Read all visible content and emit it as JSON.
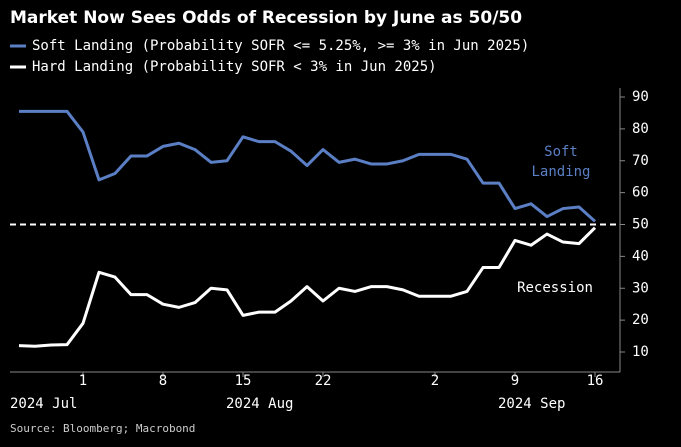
{
  "chart_data": {
    "type": "line",
    "title": "Market Now Sees Odds of Recession by June as 50/50",
    "x": [
      "2024-07-26",
      "2024-07-29",
      "2024-07-30",
      "2024-07-31",
      "2024-08-01",
      "2024-08-02",
      "2024-08-05",
      "2024-08-06",
      "2024-08-07",
      "2024-08-08",
      "2024-08-09",
      "2024-08-12",
      "2024-08-13",
      "2024-08-14",
      "2024-08-15",
      "2024-08-16",
      "2024-08-19",
      "2024-08-20",
      "2024-08-21",
      "2024-08-22",
      "2024-08-23",
      "2024-08-26",
      "2024-08-27",
      "2024-08-28",
      "2024-08-29",
      "2024-08-30",
      "2024-09-03",
      "2024-09-04",
      "2024-09-05",
      "2024-09-06",
      "2024-09-09",
      "2024-09-10",
      "2024-09-11",
      "2024-09-12",
      "2024-09-13",
      "2024-09-16"
    ],
    "series": [
      {
        "name": "Soft Landing (Probability SOFR <= 5.25%, >= 3% in Jun 2025)",
        "color": "#5b7fc4",
        "values": [
          85.5,
          85.5,
          85.5,
          85.5,
          79,
          64,
          66,
          71.5,
          71.5,
          74.5,
          75.5,
          73.5,
          69.5,
          70,
          77.5,
          76,
          76,
          73,
          68.5,
          73.5,
          69.5,
          70.5,
          69,
          69,
          70,
          72,
          72,
          70.5,
          63,
          63,
          55,
          56.5,
          52.5,
          55,
          55.5,
          51
        ]
      },
      {
        "name": "Hard Landing (Probability SOFR < 3% in Jun 2025)",
        "color": "#ffffff",
        "values": [
          12,
          11.8,
          12.2,
          12.3,
          19,
          35,
          33.5,
          28,
          28,
          25,
          24,
          25.5,
          30,
          29.5,
          21.5,
          22.5,
          22.5,
          26,
          30.5,
          26,
          30,
          29,
          30.5,
          30.5,
          29.5,
          27.5,
          27.5,
          29,
          36.5,
          36.5,
          45,
          43.5,
          47,
          44.5,
          44,
          49
        ]
      }
    ],
    "ylim": [
      7,
      92
    ],
    "yticks": [
      10,
      20,
      30,
      40,
      50,
      60,
      70,
      80,
      90
    ],
    "xticks": [
      {
        "value": "2024-08-01",
        "label": "1"
      },
      {
        "value": "2024-08-08",
        "label": "8"
      },
      {
        "value": "2024-08-15",
        "label": "15"
      },
      {
        "value": "2024-08-22",
        "label": "22"
      },
      {
        "value": "2024-09-02",
        "label": "2"
      },
      {
        "value": "2024-09-09",
        "label": "9"
      },
      {
        "value": "2024-09-16",
        "label": "16"
      }
    ],
    "month_labels": [
      "2024 Jul",
      "2024 Aug",
      "2024 Sep"
    ],
    "threshold": 50,
    "annotations": [
      "Soft",
      "Landing",
      "Recession"
    ],
    "source": "Source: Bloomberg; Macrobond"
  }
}
